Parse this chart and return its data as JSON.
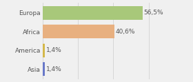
{
  "categories": [
    "Europa",
    "Africa",
    "America",
    "Asia"
  ],
  "values": [
    56.5,
    40.6,
    1.4,
    1.4
  ],
  "bar_colors": [
    "#a8c87a",
    "#e8b080",
    "#d4b84a",
    "#6878c8"
  ],
  "label_texts": [
    "56,5%",
    "40,6%",
    "1,4%",
    "1,4%"
  ],
  "background_color": "#f0f0f0",
  "xlim": [
    0,
    72
  ],
  "bar_height": 0.72,
  "label_fontsize": 6.5,
  "category_fontsize": 6.5,
  "grid_color": "#cccccc",
  "text_color": "#555555"
}
